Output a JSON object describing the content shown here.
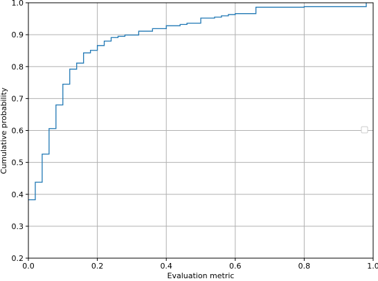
{
  "chart_data": {
    "type": "line",
    "step": true,
    "title": "",
    "xlabel": "Evaluation metric",
    "ylabel": "Cumulative probability",
    "xlim": [
      0.0,
      1.0
    ],
    "ylim": [
      0.2,
      1.0
    ],
    "grid": true,
    "legend": "right, empty",
    "xticks": [
      0.0,
      0.2,
      0.4,
      0.6,
      0.8,
      1.0
    ],
    "xtick_labels": [
      "0.0",
      "0.2",
      "0.4",
      "0.6",
      "0.8",
      "1.0"
    ],
    "yticks": [
      0.2,
      0.3,
      0.4,
      0.5,
      0.6,
      0.7,
      0.8,
      0.9,
      1.0
    ],
    "ytick_labels": [
      "0.2",
      "0.3",
      "0.4",
      "0.5",
      "0.6",
      "0.7",
      "0.8",
      "0.9",
      "1.0"
    ],
    "series": [
      {
        "color": "#1f77b4",
        "x": [
          0.0,
          0.02,
          0.04,
          0.06,
          0.08,
          0.1,
          0.12,
          0.14,
          0.16,
          0.18,
          0.2,
          0.22,
          0.24,
          0.26,
          0.28,
          0.32,
          0.36,
          0.4,
          0.44,
          0.46,
          0.5,
          0.54,
          0.56,
          0.58,
          0.6,
          0.66,
          0.8,
          0.98
        ],
        "y": [
          0.383,
          0.438,
          0.526,
          0.606,
          0.68,
          0.745,
          0.792,
          0.811,
          0.843,
          0.851,
          0.866,
          0.88,
          0.891,
          0.895,
          0.899,
          0.911,
          0.919,
          0.928,
          0.932,
          0.936,
          0.952,
          0.955,
          0.959,
          0.963,
          0.966,
          0.986,
          0.988,
          1.0
        ]
      }
    ]
  }
}
